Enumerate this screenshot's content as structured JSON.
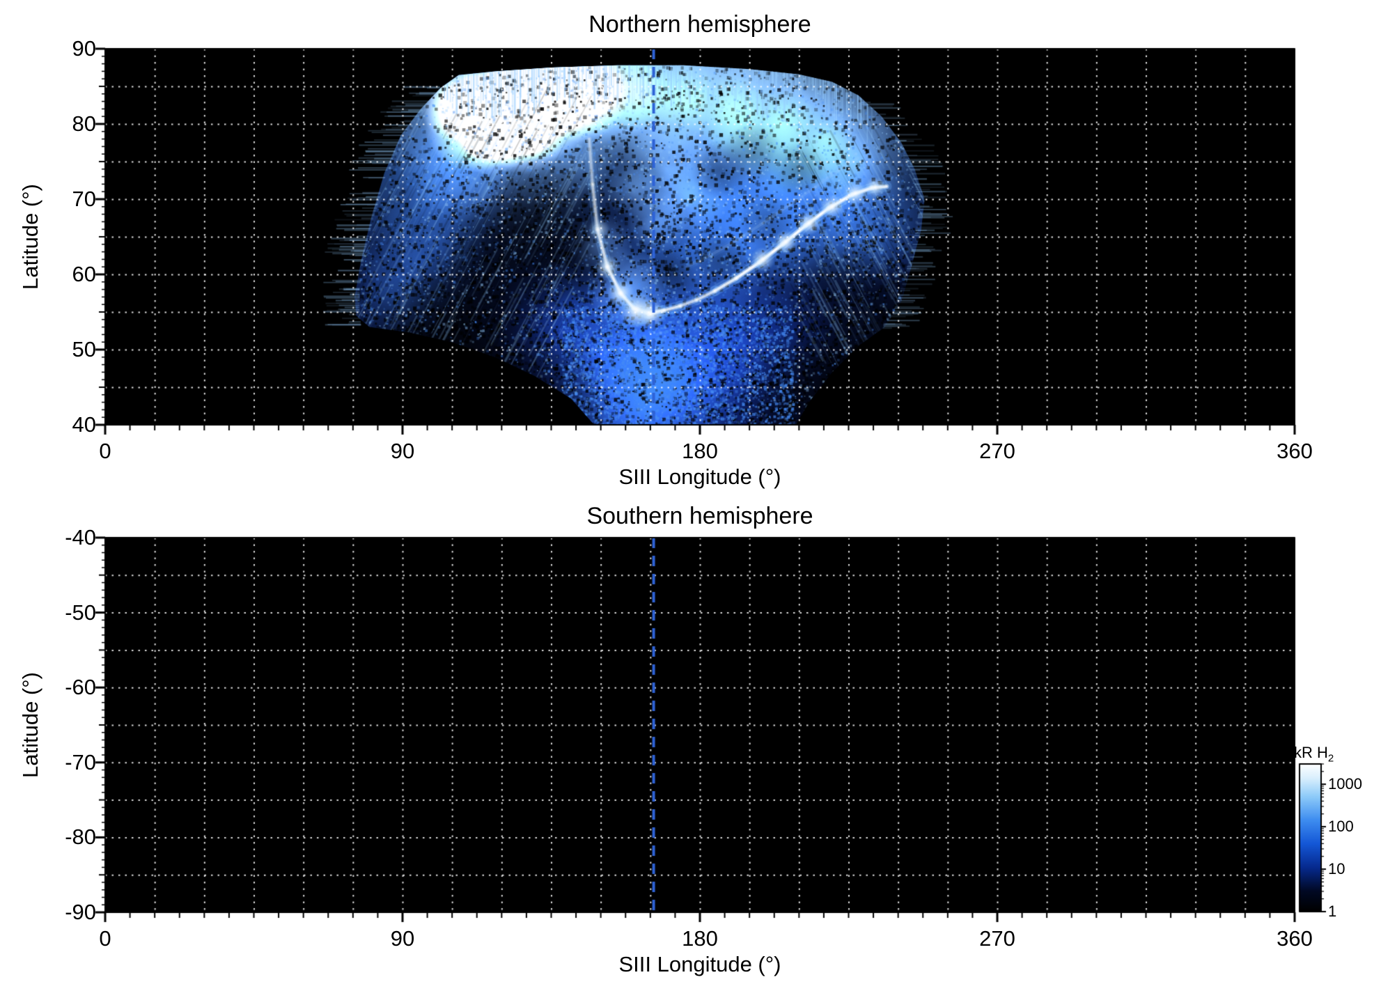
{
  "figure": {
    "background": "#ffffff",
    "text_color": "#000000"
  },
  "chart_data": {
    "type": "heatmap",
    "dashed_line_color": "#2e62d6",
    "grid_color": "#ffffff",
    "panels": [
      {
        "id": "north",
        "title": "Northern hemisphere",
        "xlabel": "SIII Longitude (°)",
        "ylabel": "Latitude (°)",
        "xlim": [
          0,
          360
        ],
        "ylim": [
          90,
          40
        ],
        "xticks": [
          0,
          90,
          180,
          270,
          360
        ],
        "yticks": [
          90,
          80,
          70,
          60,
          50,
          40
        ],
        "grid_x_step": 15,
        "grid_y_step": 5,
        "minor_x_step": 7.5,
        "minor_y_step": 1,
        "dashed_line_x": 166,
        "has_data": true
      },
      {
        "id": "south",
        "title": "Southern hemisphere",
        "xlabel": "SIII Longitude (°)",
        "ylabel": "Latitude (°)",
        "xlim": [
          0,
          360
        ],
        "ylim": [
          -40,
          -90
        ],
        "xticks": [
          0,
          90,
          180,
          270,
          360
        ],
        "yticks": [
          -40,
          -50,
          -60,
          -70,
          -80,
          -90
        ],
        "grid_x_step": 15,
        "grid_y_step": 5,
        "minor_x_step": 7.5,
        "minor_y_step": 1,
        "dashed_line_x": 166,
        "has_data": false
      }
    ],
    "colorbar": {
      "label": "kR H",
      "label_sub": "2",
      "scale": "log",
      "range": [
        1,
        3000
      ],
      "ticks": [
        1000,
        100,
        10,
        1
      ],
      "colormap": [
        {
          "v": 0.0,
          "c": "#000000"
        },
        {
          "v": 0.14,
          "c": "#010924"
        },
        {
          "v": 0.3,
          "c": "#062a8f"
        },
        {
          "v": 0.46,
          "c": "#1457d6"
        },
        {
          "v": 0.62,
          "c": "#3e8df0"
        },
        {
          "v": 0.78,
          "c": "#8ecbf9"
        },
        {
          "v": 0.9,
          "c": "#d7eefd"
        },
        {
          "v": 1.0,
          "c": "#ffffff"
        }
      ]
    },
    "aurora": {
      "seed": 1234,
      "lon_range": [
        75,
        250
      ],
      "lat_range": [
        40,
        88
      ],
      "colors": {
        "white": "255,255,255",
        "light": "150,205,255",
        "mid": "70,140,245",
        "deep": "28,72,205"
      },
      "envelope": [
        [
          107,
          86.5
        ],
        [
          118,
          87
        ],
        [
          135,
          87.5
        ],
        [
          155,
          87.8
        ],
        [
          175,
          87.8
        ],
        [
          195,
          87.3
        ],
        [
          210,
          86.6
        ],
        [
          220,
          85.6
        ],
        [
          228,
          83.8
        ],
        [
          235,
          81
        ],
        [
          241,
          77.5
        ],
        [
          245,
          74
        ],
        [
          248,
          70
        ],
        [
          247,
          66
        ],
        [
          244,
          61
        ],
        [
          241,
          56.5
        ],
        [
          236,
          53
        ],
        [
          228,
          50.5
        ],
        [
          220,
          47
        ],
        [
          213,
          43
        ],
        [
          209,
          40
        ],
        [
          148,
          40
        ],
        [
          141,
          43.5
        ],
        [
          130,
          46.5
        ],
        [
          118,
          49
        ],
        [
          105,
          51
        ],
        [
          92,
          52.3
        ],
        [
          80,
          53
        ],
        [
          76,
          54.5
        ],
        [
          75.5,
          57
        ],
        [
          77.5,
          62
        ],
        [
          80.5,
          67.5
        ],
        [
          84.5,
          73.5
        ],
        [
          89.5,
          78.5
        ],
        [
          95.5,
          82
        ],
        [
          101.5,
          84.8
        ]
      ],
      "top_edge": [
        [
          107,
          86.5
        ],
        [
          118,
          87
        ],
        [
          135,
          87.5
        ],
        [
          155,
          87.8
        ],
        [
          175,
          87.8
        ],
        [
          195,
          87.3
        ],
        [
          210,
          86.6
        ],
        [
          220,
          85.6
        ],
        [
          228,
          83.8
        ],
        [
          235,
          81
        ]
      ],
      "left_edge": [
        [
          53,
          76
        ],
        [
          55,
          75.5
        ],
        [
          58,
          75.5
        ],
        [
          63,
          77
        ],
        [
          68,
          80
        ],
        [
          74,
          84
        ],
        [
          79,
          89
        ],
        [
          82,
          95
        ],
        [
          85,
          100
        ],
        [
          87,
          104
        ]
      ],
      "right_edge": [
        [
          52,
          235
        ],
        [
          55,
          240
        ],
        [
          59,
          243
        ],
        [
          64,
          246
        ],
        [
          69,
          248
        ],
        [
          73,
          246
        ],
        [
          77,
          242
        ],
        [
          81,
          236
        ],
        [
          84,
          227
        ]
      ],
      "glow_blobs": [
        [
          112,
          80.5,
          75,
          0.95,
          "white"
        ],
        [
          121,
          82,
          85,
          0.95,
          "white"
        ],
        [
          132,
          83.5,
          90,
          0.9,
          "white"
        ],
        [
          143,
          84.5,
          75,
          0.85,
          "white"
        ],
        [
          127,
          79,
          62,
          0.8,
          "white"
        ],
        [
          107,
          82.5,
          55,
          0.8,
          "white"
        ],
        [
          117,
          77.5,
          48,
          0.6,
          "white"
        ],
        [
          120,
          81,
          170,
          0.5,
          "light"
        ],
        [
          140,
          82.5,
          160,
          0.45,
          "light"
        ],
        [
          152,
          85,
          85,
          0.55,
          "light"
        ],
        [
          163,
          84,
          100,
          0.5,
          "light"
        ],
        [
          176,
          83,
          110,
          0.5,
          "light"
        ],
        [
          190,
          82,
          115,
          0.5,
          "light"
        ],
        [
          205,
          80.5,
          110,
          0.48,
          "light"
        ],
        [
          218,
          78,
          95,
          0.45,
          "light"
        ],
        [
          228,
          75,
          80,
          0.4,
          "light"
        ],
        [
          205,
          72,
          150,
          0.4,
          "mid"
        ],
        [
          220,
          68,
          120,
          0.38,
          "mid"
        ],
        [
          190,
          70,
          140,
          0.35,
          "mid"
        ],
        [
          178,
          64,
          120,
          0.3,
          "mid"
        ],
        [
          195,
          63,
          110,
          0.3,
          "mid"
        ],
        [
          232,
          66,
          90,
          0.3,
          "mid"
        ],
        [
          170,
          74,
          65,
          0.5,
          "light"
        ],
        [
          177,
          70,
          55,
          0.4,
          "light"
        ],
        [
          167,
          67,
          45,
          0.42,
          "light"
        ],
        [
          160,
          71,
          40,
          0.35,
          "light"
        ],
        [
          100,
          70,
          110,
          0.35,
          "mid"
        ],
        [
          95,
          62,
          100,
          0.3,
          "mid"
        ],
        [
          105,
          75,
          90,
          0.35,
          "mid"
        ],
        [
          88,
          57,
          80,
          0.28,
          "mid"
        ],
        [
          165,
          52,
          170,
          0.45,
          "mid"
        ],
        [
          150,
          47,
          140,
          0.4,
          "deep"
        ],
        [
          175,
          45,
          150,
          0.45,
          "deep"
        ],
        [
          163,
          42,
          130,
          0.5,
          "mid"
        ],
        [
          185,
          50,
          130,
          0.35,
          "deep"
        ],
        [
          140,
          52,
          110,
          0.3,
          "deep"
        ],
        [
          200,
          52,
          110,
          0.3,
          "deep"
        ],
        [
          158,
          58,
          60,
          0.5,
          "light"
        ],
        [
          150,
          64,
          45,
          0.4,
          "light"
        ]
      ],
      "dark_blobs": [
        [
          133,
          68,
          85,
          0.55
        ],
        [
          122,
          62,
          95,
          0.6
        ],
        [
          108,
          56,
          85,
          0.55
        ],
        [
          143,
          62,
          60,
          0.4
        ],
        [
          96,
          52,
          90,
          0.5
        ],
        [
          115,
          48,
          110,
          0.6
        ],
        [
          100,
          44,
          120,
          0.7
        ],
        [
          230,
          47,
          110,
          0.8
        ],
        [
          242,
          55,
          70,
          0.6
        ],
        [
          225,
          58,
          70,
          0.35
        ],
        [
          210,
          44,
          90,
          0.5
        ],
        [
          135,
          44,
          90,
          0.5
        ],
        [
          186,
          74,
          42,
          0.3
        ],
        [
          196,
          76,
          45,
          0.3
        ],
        [
          210,
          74,
          40,
          0.3
        ],
        [
          172,
          60,
          35,
          0.3
        ],
        [
          186,
          62,
          40,
          0.3
        ],
        [
          200,
          67,
          40,
          0.3
        ]
      ],
      "main_arc": [
        [
          146.5,
          78,
          0.35
        ],
        [
          147.5,
          72,
          0.45
        ],
        [
          149,
          66,
          0.55
        ],
        [
          152,
          61,
          0.75
        ],
        [
          156,
          57.5,
          0.9
        ],
        [
          160,
          55.5,
          1
        ],
        [
          164.5,
          54.8,
          1
        ],
        [
          169,
          55.2,
          0.85
        ],
        [
          174,
          55.8,
          0.6
        ],
        [
          179,
          56.6,
          0.55
        ],
        [
          184.5,
          57.8,
          0.7
        ],
        [
          191,
          59.5,
          0.85
        ],
        [
          198,
          61.6,
          1
        ],
        [
          205,
          64,
          1
        ],
        [
          212,
          66.5,
          1
        ],
        [
          219,
          68.8,
          1
        ],
        [
          226,
          70.6,
          0.95
        ],
        [
          232,
          71.5,
          0.9
        ],
        [
          236.5,
          71.7,
          0.75
        ]
      ],
      "secondary_arc": [
        [
          176,
          61,
          0.3
        ],
        [
          183,
          62.5,
          0.35
        ],
        [
          191,
          64.5,
          0.4
        ],
        [
          199,
          66.8,
          0.45
        ],
        [
          207,
          69.2,
          0.45
        ],
        [
          215,
          71.6,
          0.4
        ],
        [
          222,
          73.8,
          0.35
        ],
        [
          228,
          75.5,
          0.3
        ]
      ],
      "arc_blobs": [
        [
          161,
          55.2,
          12,
          1
        ],
        [
          156,
          57.5,
          9,
          0.9
        ],
        [
          152,
          61,
          8,
          0.8
        ],
        [
          149.5,
          66,
          7,
          0.6
        ],
        [
          165,
          54.8,
          10,
          1
        ],
        [
          199,
          62,
          8,
          0.85
        ],
        [
          206,
          64.3,
          8,
          0.9
        ],
        [
          213,
          66.8,
          8,
          0.9
        ],
        [
          220,
          69,
          8,
          0.9
        ],
        [
          227,
          70.8,
          8,
          0.85
        ],
        [
          233,
          71.6,
          7,
          0.8
        ]
      ],
      "speckle": {
        "dark_count": 9000,
        "bright_count": 5200,
        "dense_count": 2600,
        "dense_region": [
          138,
          208,
          40,
          56
        ]
      },
      "streaks": {
        "left": {
          "count": 230,
          "lon": [
            78,
            148
          ],
          "lat": [
            52,
            86
          ],
          "angle_deg": 118,
          "len": [
            40,
            150
          ]
        },
        "right": {
          "count": 150,
          "lon": [
            206,
            250
          ],
          "lat": [
            52,
            82
          ],
          "angle_deg": 62,
          "len": [
            40,
            130
          ]
        },
        "comb": {
          "lon": [
            103,
            232
          ],
          "step": 0.7,
          "drop": [
            1,
            6.5
          ]
        }
      },
      "fringe_count": 130
    }
  }
}
